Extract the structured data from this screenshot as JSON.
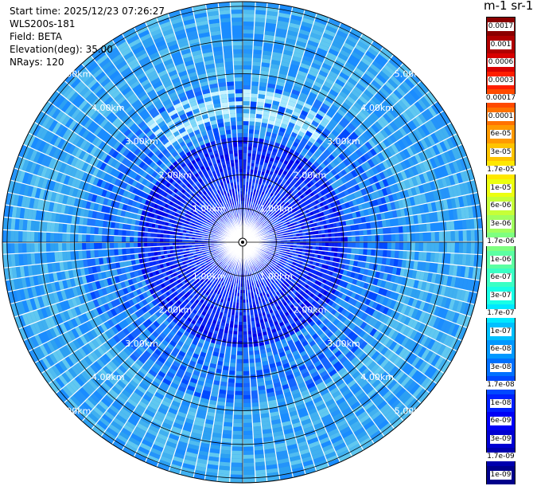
{
  "info": {
    "start_time": "Start time: 2025/12/23 07:26:27",
    "instrument": "WLS200s-181",
    "field": "Field: BETA",
    "elevation": "Elevation(deg): 35.00",
    "nrays": "NRays: 120"
  },
  "colorbar": {
    "title": "m-1 sr-1",
    "labels": [
      "0.0017",
      "0.001",
      "0.0006",
      "0.0003",
      "0.00017",
      "0.0001",
      "6e-05",
      "3e-05",
      "1.7e-05",
      "1e-05",
      "6e-06",
      "3e-06",
      "1.7e-06",
      "1e-06",
      "6e-07",
      "3e-07",
      "1.7e-07",
      "1e-07",
      "6e-08",
      "3e-08",
      "1.7e-08",
      "1e-08",
      "6e-09",
      "3e-09",
      "1.7e-09",
      "1e-09"
    ],
    "colors": [
      "#8b0000",
      "#b00000",
      "#d80000",
      "#ff1e00",
      "#ff4a00",
      "#ff7200",
      "#ff9a00",
      "#ffc400",
      "#ffe800",
      "#ecff10",
      "#c6ff38",
      "#a0ff5e",
      "#7eff80",
      "#5cffa2",
      "#3affc4",
      "#18ffe6",
      "#00e8ff",
      "#00c0ff",
      "#0098ff",
      "#0070ff",
      "#0048ff",
      "#0020ff",
      "#0000f6",
      "#0000d2",
      "#0000ae",
      "#00008b"
    ]
  },
  "ppi": {
    "range_labels": [
      "1.00km",
      "2.00km",
      "3.00km",
      "4.00km",
      "5.00km"
    ],
    "nrays": 120,
    "palette": {
      "near": [
        "#0000e8",
        "#0a1ef0",
        "#1238f8",
        "#0028ff",
        "#1e5aff"
      ],
      "mid": [
        "#1464ff",
        "#1e78ff",
        "#1a8cff",
        "#2a9cf6",
        "#3aa8f0",
        "#0048ff"
      ],
      "far": [
        "#2ca0f2",
        "#40b0f0",
        "#1a8cff",
        "#50bcf0",
        "#2494fa",
        "#60c8f0"
      ],
      "band": [
        "#7ed8f8",
        "#a4e8fc",
        "#c8f4ff"
      ]
    }
  }
}
